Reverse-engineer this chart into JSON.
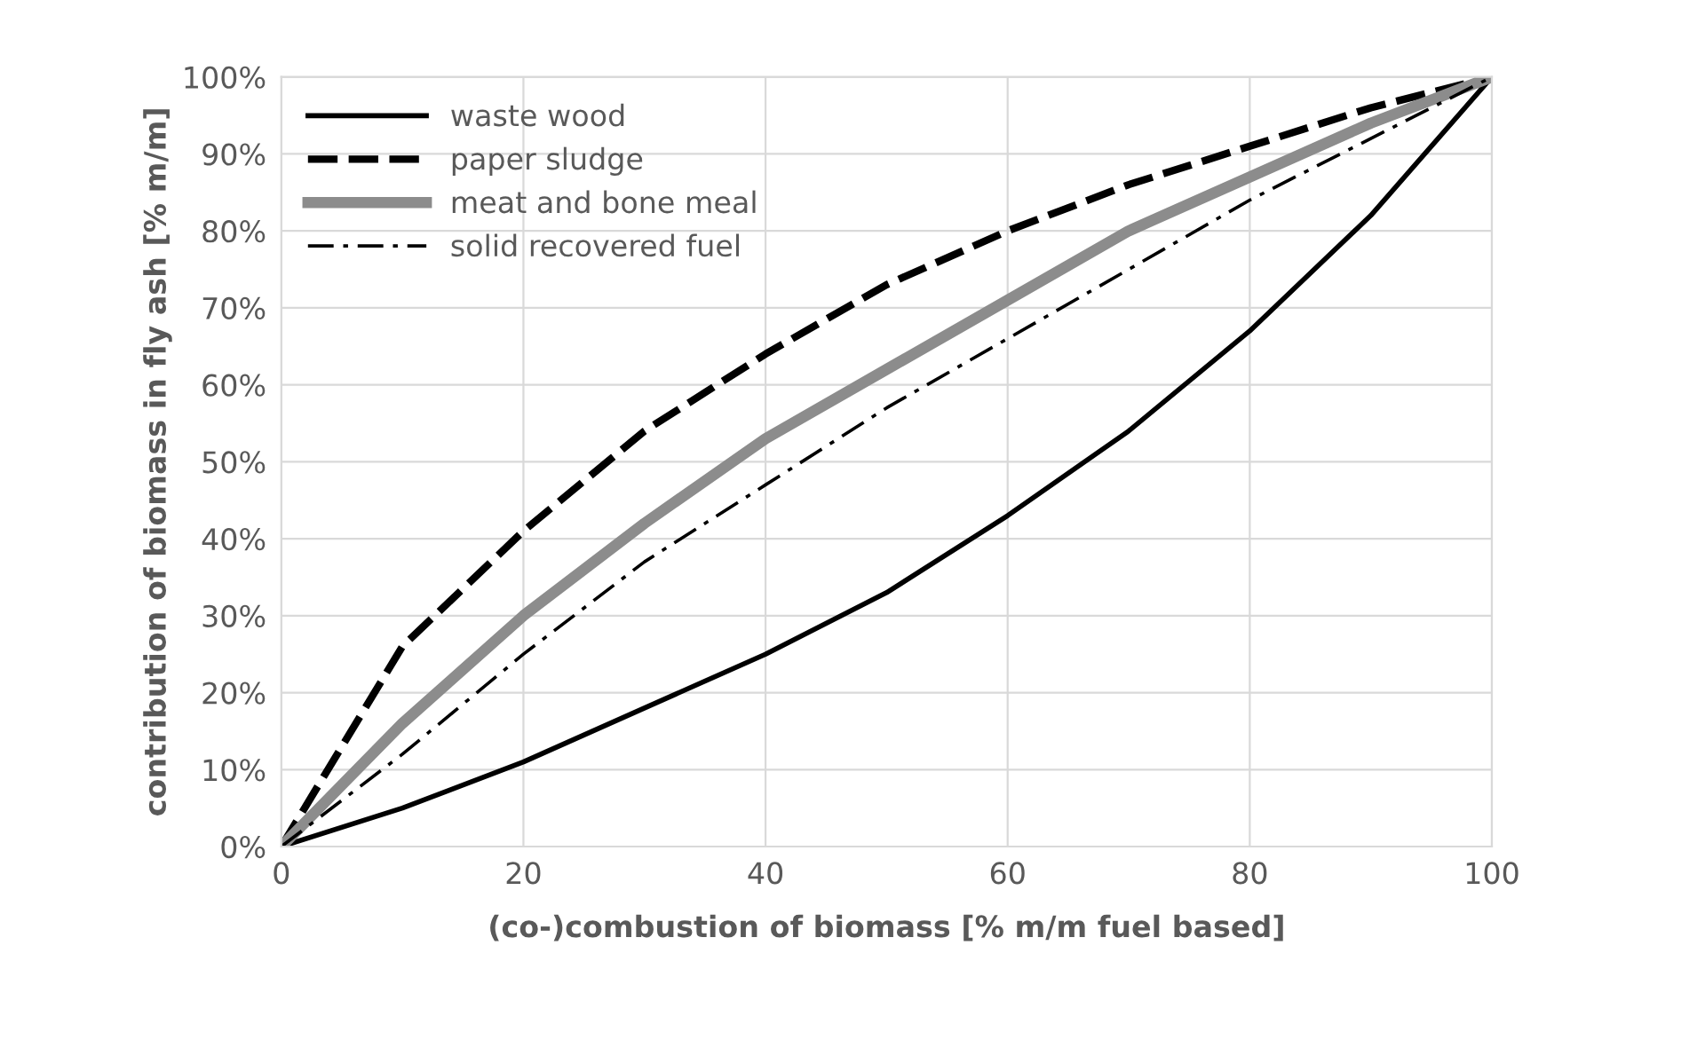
{
  "chart_data": {
    "type": "line",
    "xlabel": "(co-)combustion of biomass [% m/m fuel based]",
    "ylabel": "contribution of biomass in fly ash [% m/m]",
    "x": [
      0,
      10,
      20,
      30,
      40,
      50,
      60,
      70,
      80,
      90,
      100
    ],
    "series": [
      {
        "name": "waste wood",
        "color": "#000000",
        "line_style": "solid",
        "values": [
          0,
          5,
          11,
          18,
          25,
          33,
          43,
          54,
          67,
          82,
          100
        ]
      },
      {
        "name": "paper sludge",
        "color": "#000000",
        "line_style": "dashed",
        "values": [
          0,
          26,
          41,
          54,
          64,
          73,
          80,
          86,
          91,
          96,
          100
        ]
      },
      {
        "name": "meat and bone meal",
        "color": "#8c8c8c",
        "line_style": "solid",
        "values": [
          0,
          16,
          30,
          42,
          53,
          62,
          71,
          80,
          87,
          94,
          100
        ]
      },
      {
        "name": "solid recovered fuel",
        "color": "#000000",
        "line_style": "dashdot",
        "values": [
          0,
          12,
          25,
          37,
          47,
          57,
          66,
          75,
          84,
          92,
          100
        ]
      }
    ],
    "xlim": [
      0,
      100
    ],
    "xticks": [
      0,
      20,
      40,
      60,
      80,
      100
    ],
    "ylim": [
      0,
      100
    ],
    "yticks": [
      {
        "value": 0,
        "label": "0%"
      },
      {
        "value": 10,
        "label": "10%"
      },
      {
        "value": 20,
        "label": "20%"
      },
      {
        "value": 30,
        "label": "30%"
      },
      {
        "value": 40,
        "label": "40%"
      },
      {
        "value": 50,
        "label": "50%"
      },
      {
        "value": 60,
        "label": "60%"
      },
      {
        "value": 70,
        "label": "70%"
      },
      {
        "value": 80,
        "label": "80%"
      },
      {
        "value": 90,
        "label": "90%"
      },
      {
        "value": 100,
        "label": "100%"
      }
    ],
    "grid": true,
    "legend": "top left",
    "marker": "none"
  }
}
